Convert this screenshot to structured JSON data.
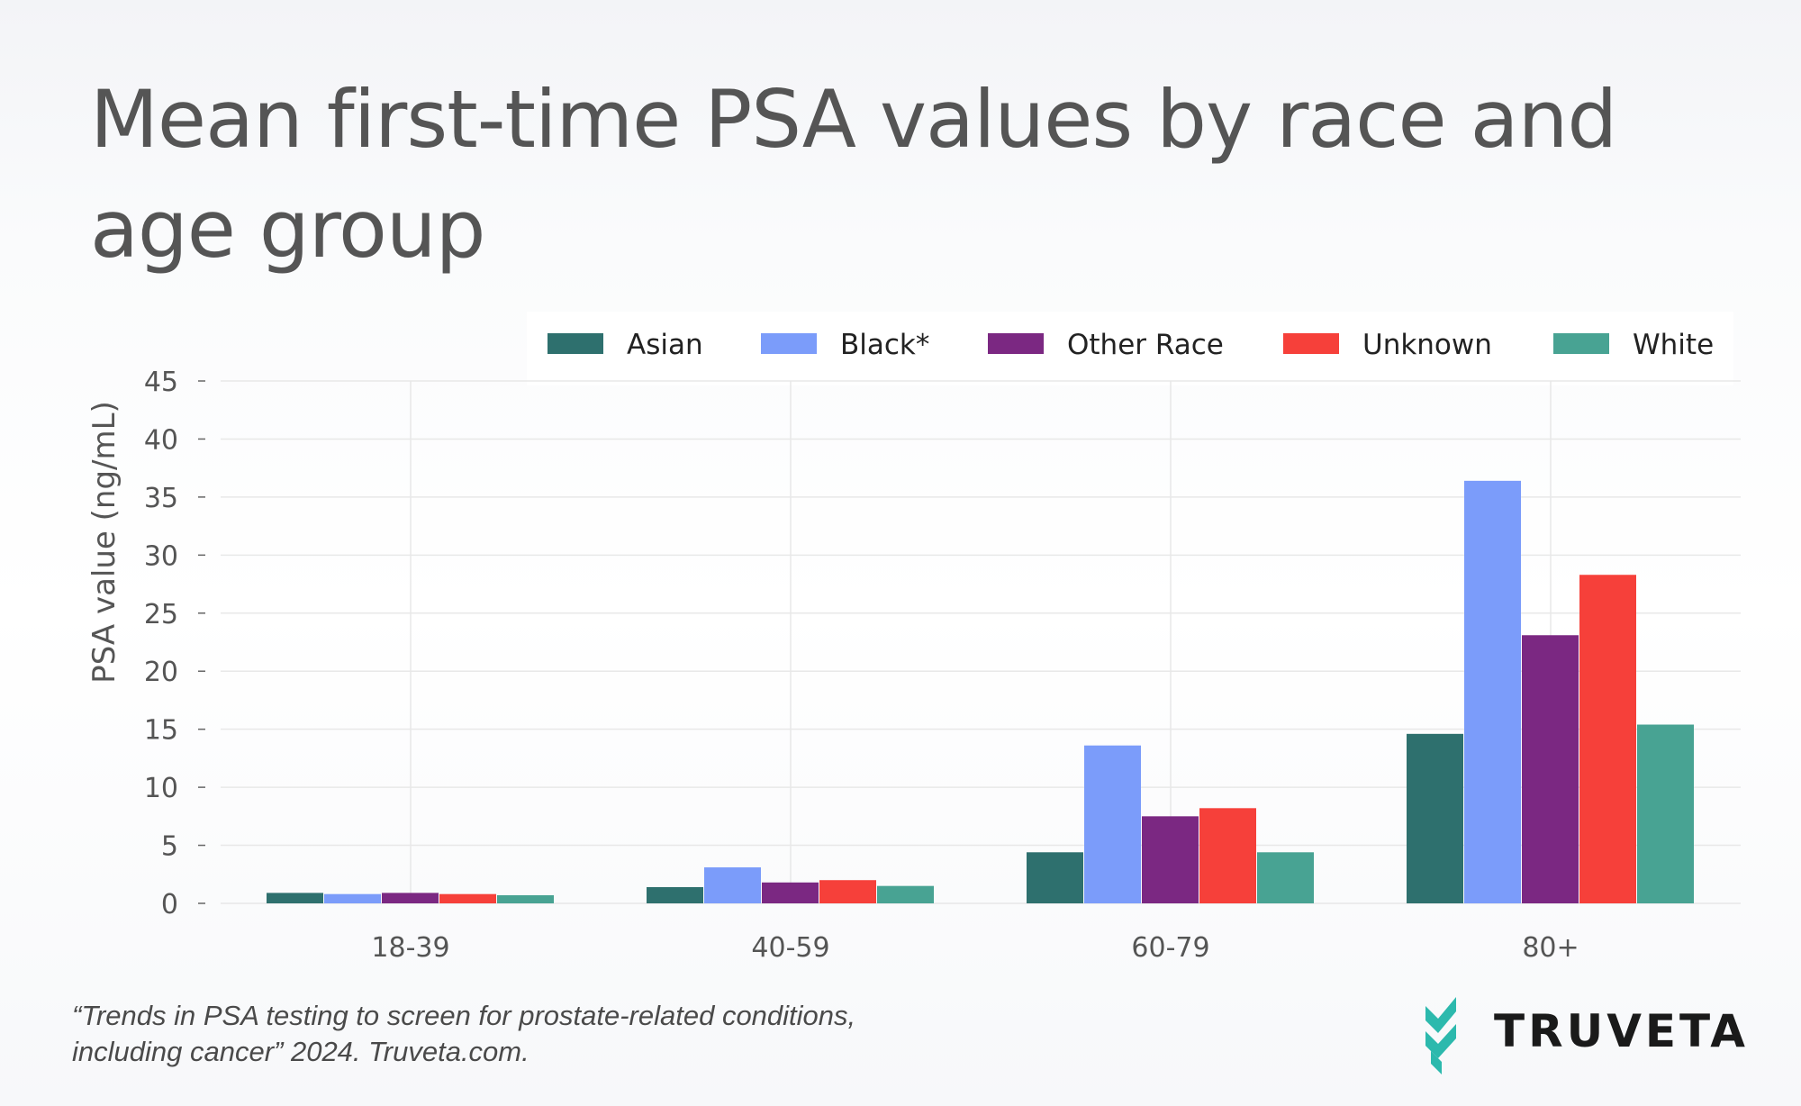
{
  "title": "Mean first-time PSA values by race and age group",
  "caption_line1": "“Trends in PSA testing to screen for prostate-related conditions,",
  "caption_line2": "including cancer” 2024. Truveta.com.",
  "logo_text": "TRUVETA",
  "colors": {
    "text": "#555555",
    "grid": "#e8e8e8",
    "logo_teal": "#2cb9ad"
  },
  "chart_data": {
    "type": "bar",
    "title": "Mean first-time PSA values by race and age group",
    "xlabel": "",
    "ylabel": "PSA value (ng/mL)",
    "ylim": [
      0,
      45
    ],
    "yticks": [
      0,
      5,
      10,
      15,
      20,
      25,
      30,
      35,
      40,
      45
    ],
    "grid": true,
    "legend_position": "top-right",
    "categories": [
      "18-39",
      "40-59",
      "60-79",
      "80+"
    ],
    "series": [
      {
        "name": "Asian",
        "color": "#2e706e",
        "values": [
          0.9,
          1.4,
          4.4,
          14.6
        ]
      },
      {
        "name": "Black*",
        "color": "#7b9cfa",
        "values": [
          0.8,
          3.1,
          13.6,
          36.4
        ]
      },
      {
        "name": "Other Race",
        "color": "#7b2882",
        "values": [
          0.9,
          1.8,
          7.5,
          23.1
        ]
      },
      {
        "name": "Unknown",
        "color": "#f6403a",
        "values": [
          0.8,
          2.0,
          8.2,
          28.3
        ]
      },
      {
        "name": "White",
        "color": "#48a393",
        "values": [
          0.7,
          1.5,
          4.4,
          15.4
        ]
      }
    ]
  }
}
